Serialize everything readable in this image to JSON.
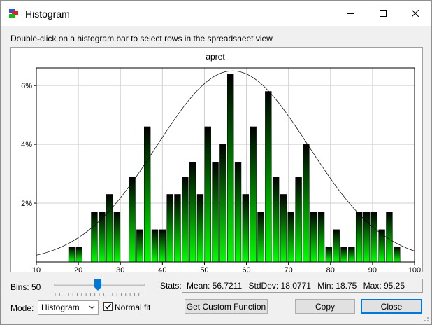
{
  "window": {
    "title": "Histogram",
    "icon": "app-histogram-icon"
  },
  "hint": "Double-click on a histogram bar to select rows in the spreadsheet view",
  "controls": {
    "bins_label": "Bins: 50",
    "bins_value": 50,
    "stats_label": "Stats:",
    "stats": {
      "mean": "Mean: 56.7211",
      "stddev": "StdDev: 18.0771",
      "min": "Min: 18.75",
      "max": "Max: 95.25"
    },
    "mode_label": "Mode:",
    "mode_value": "Histogram",
    "normal_fit_label": "Normal fit",
    "normal_fit_checked": true,
    "custom_button": "Get Custom Function",
    "copy_button": "Copy",
    "close_button": "Close"
  },
  "chart_data": {
    "type": "bar",
    "title": "apret",
    "xlabel": "",
    "ylabel": "",
    "xlim": [
      10,
      100
    ],
    "ylim": [
      0,
      6.6
    ],
    "x_ticks": [
      10,
      20,
      30,
      40,
      50,
      60,
      70,
      80,
      90,
      100
    ],
    "y_ticks": [
      2,
      4,
      6
    ],
    "y_tick_labels": [
      "2%",
      "4%",
      "6%"
    ],
    "bin_width": 1.8,
    "bins": [
      {
        "x": 18.4,
        "y": 0.5
      },
      {
        "x": 20.2,
        "y": 0.5
      },
      {
        "x": 23.8,
        "y": 1.7
      },
      {
        "x": 25.6,
        "y": 1.7
      },
      {
        "x": 27.4,
        "y": 2.3
      },
      {
        "x": 29.2,
        "y": 1.7
      },
      {
        "x": 32.8,
        "y": 2.9
      },
      {
        "x": 34.6,
        "y": 1.1
      },
      {
        "x": 36.4,
        "y": 4.6
      },
      {
        "x": 38.2,
        "y": 1.1
      },
      {
        "x": 40.0,
        "y": 1.1
      },
      {
        "x": 41.8,
        "y": 2.3
      },
      {
        "x": 43.6,
        "y": 2.3
      },
      {
        "x": 45.4,
        "y": 2.9
      },
      {
        "x": 47.2,
        "y": 3.4
      },
      {
        "x": 49.0,
        "y": 2.3
      },
      {
        "x": 50.8,
        "y": 4.6
      },
      {
        "x": 52.6,
        "y": 3.4
      },
      {
        "x": 54.4,
        "y": 4.0
      },
      {
        "x": 56.2,
        "y": 6.4
      },
      {
        "x": 58.0,
        "y": 3.4
      },
      {
        "x": 59.8,
        "y": 2.3
      },
      {
        "x": 61.6,
        "y": 4.6
      },
      {
        "x": 63.4,
        "y": 1.7
      },
      {
        "x": 65.2,
        "y": 5.8
      },
      {
        "x": 67.0,
        "y": 2.9
      },
      {
        "x": 68.8,
        "y": 2.3
      },
      {
        "x": 70.6,
        "y": 1.7
      },
      {
        "x": 72.4,
        "y": 2.9
      },
      {
        "x": 74.2,
        "y": 4.0
      },
      {
        "x": 76.0,
        "y": 1.7
      },
      {
        "x": 77.8,
        "y": 1.7
      },
      {
        "x": 79.6,
        "y": 0.5
      },
      {
        "x": 81.4,
        "y": 1.1
      },
      {
        "x": 83.2,
        "y": 0.5
      },
      {
        "x": 85.0,
        "y": 0.5
      },
      {
        "x": 86.8,
        "y": 1.7
      },
      {
        "x": 88.6,
        "y": 1.7
      },
      {
        "x": 90.4,
        "y": 1.7
      },
      {
        "x": 92.2,
        "y": 1.1
      },
      {
        "x": 94.0,
        "y": 1.7
      },
      {
        "x": 95.8,
        "y": 0.5
      }
    ],
    "normal_fit": {
      "mean": 56.7211,
      "stddev": 18.0771,
      "peak": 6.5
    },
    "grid": true,
    "bar_gradient": [
      "#00ff00",
      "#000000"
    ]
  }
}
